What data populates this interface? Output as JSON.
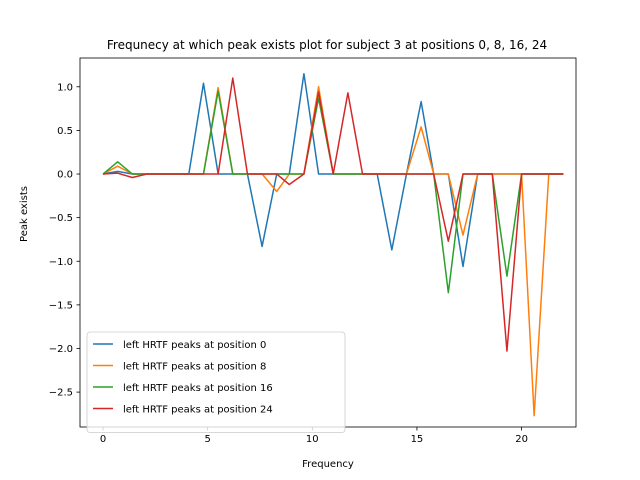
{
  "chart_data": {
    "type": "line",
    "title": "Frequnecy at which peak exists plot for subject 3 at positions 0, 8, 16, 24",
    "xlabel": "Frequency",
    "ylabel": "Peak exists",
    "xlim": [
      -1.1,
      22.6
    ],
    "ylim": [
      -2.9,
      1.33
    ],
    "xticks": [
      0,
      5,
      10,
      15,
      20
    ],
    "yticks": [
      1.0,
      0.5,
      0.0,
      -0.5,
      -1.0,
      -1.5,
      -2.0,
      -2.5
    ],
    "ytick_labels": [
      "1.0",
      "0.5",
      "0.0",
      "−0.5",
      "−1.0",
      "−1.5",
      "−2.0",
      "−2.5"
    ],
    "grid": false,
    "legend_position": "bottom-left",
    "series": [
      {
        "name": "left HRTF peaks at position 0",
        "color": "#1f77b4",
        "x": [
          0,
          0.7,
          1.4,
          2.1,
          2.8,
          3.4,
          4.1,
          4.8,
          5.5,
          6.2,
          6.9,
          7.6,
          8.3,
          8.9,
          9.6,
          10.3,
          11.0,
          11.7,
          12.4,
          13.1,
          13.8,
          14.5,
          15.2,
          15.8,
          16.5,
          17.2,
          17.9,
          18.6,
          19.3,
          20.0,
          20.6,
          21.3,
          22.0
        ],
        "y": [
          0,
          0.03,
          0,
          0,
          0,
          0,
          0,
          1.04,
          0,
          0,
          0,
          -0.83,
          0,
          0,
          1.15,
          0,
          0,
          0,
          0,
          0,
          -0.87,
          0,
          0.83,
          0,
          0,
          -1.06,
          0,
          0,
          0,
          0,
          0,
          0,
          0
        ]
      },
      {
        "name": "left HRTF peaks at position 8",
        "color": "#ff7f0e",
        "x": [
          0,
          0.7,
          1.4,
          2.1,
          2.8,
          3.4,
          4.1,
          4.8,
          5.5,
          6.2,
          6.9,
          7.6,
          8.3,
          8.9,
          9.6,
          10.3,
          11.0,
          11.7,
          12.4,
          13.1,
          13.8,
          14.5,
          15.2,
          15.8,
          16.5,
          17.2,
          17.9,
          18.6,
          19.3,
          20.0,
          20.6,
          21.3,
          22.0
        ],
        "y": [
          0,
          0.09,
          0,
          0,
          0,
          0,
          0,
          0,
          0.99,
          0,
          0,
          0,
          -0.2,
          0,
          0,
          1.0,
          0,
          0,
          0,
          0,
          0,
          0,
          0.54,
          0,
          0,
          -0.7,
          0,
          0,
          0,
          0,
          -2.77,
          0,
          0
        ]
      },
      {
        "name": "left HRTF peaks at position 16",
        "color": "#2ca02c",
        "x": [
          0,
          0.7,
          1.4,
          2.1,
          2.8,
          3.4,
          4.1,
          4.8,
          5.5,
          6.2,
          6.9,
          7.6,
          8.3,
          8.9,
          9.6,
          10.3,
          11.0,
          11.7,
          12.4,
          13.1,
          13.8,
          14.5,
          15.2,
          15.8,
          16.5,
          17.2,
          17.9,
          18.6,
          19.3,
          20.0,
          20.6,
          21.3,
          22.0
        ],
        "y": [
          0,
          0.14,
          0,
          0,
          0,
          0,
          0,
          0,
          0.95,
          0,
          0,
          0,
          0,
          0,
          0,
          0.87,
          0,
          0,
          0,
          0,
          0,
          0,
          0,
          0,
          -1.36,
          0,
          0,
          0,
          -1.17,
          0,
          0,
          0,
          0
        ]
      },
      {
        "name": "left HRTF peaks at position 24",
        "color": "#d62728",
        "x": [
          0,
          0.7,
          1.4,
          2.1,
          2.8,
          3.4,
          4.1,
          4.8,
          5.5,
          6.2,
          6.9,
          7.6,
          8.3,
          8.9,
          9.6,
          10.3,
          11.0,
          11.7,
          12.4,
          13.1,
          13.8,
          14.5,
          15.2,
          15.8,
          16.5,
          17.2,
          17.9,
          18.6,
          19.3,
          20.0,
          20.6,
          21.3,
          22.0
        ],
        "y": [
          0,
          0.01,
          -0.04,
          0,
          0,
          0,
          0,
          0,
          0,
          1.1,
          0,
          0,
          0,
          -0.12,
          0,
          0.94,
          0,
          0.93,
          0,
          0,
          0,
          0,
          0,
          0,
          -0.77,
          0,
          0,
          0,
          -2.03,
          0,
          0,
          0,
          0
        ]
      }
    ]
  }
}
